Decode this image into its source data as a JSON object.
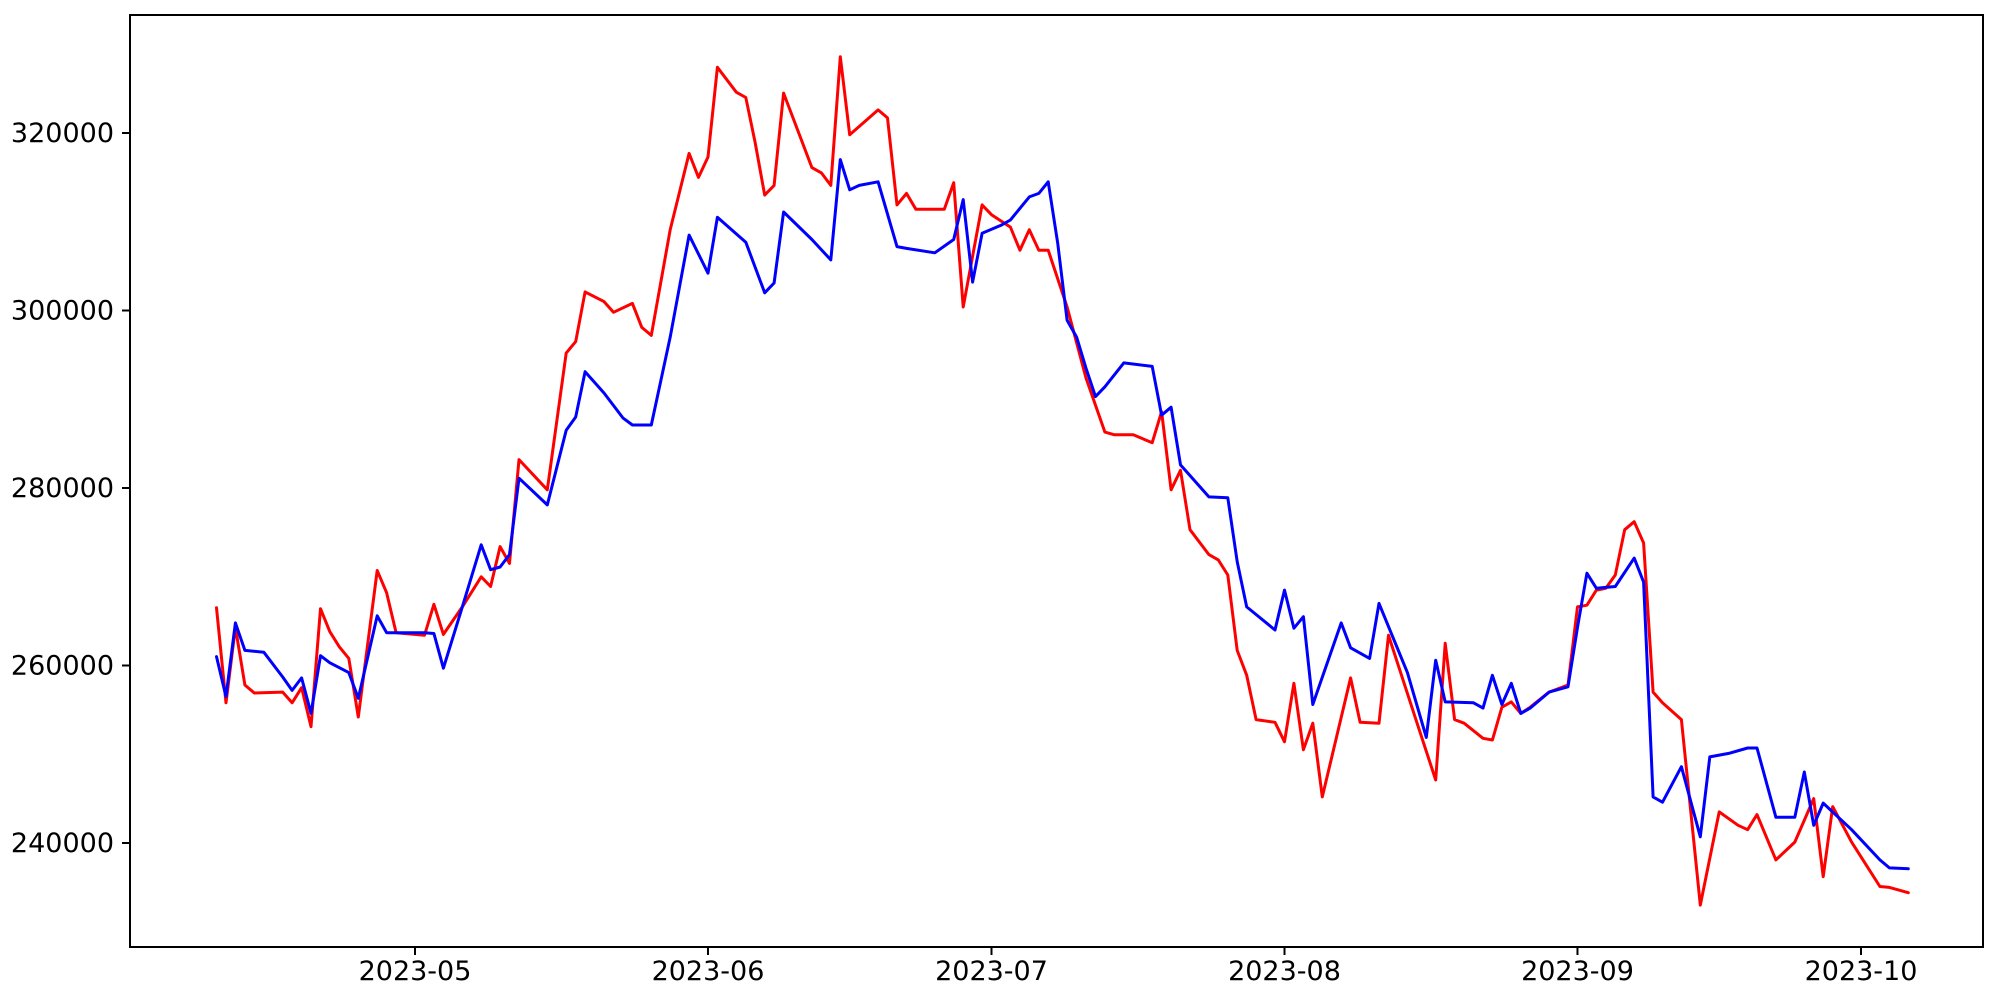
{
  "chart_data": {
    "type": "line",
    "title": "",
    "xlabel": "",
    "ylabel": "",
    "grid": false,
    "legend": "none",
    "background_color": "#ffffff",
    "axis_color": "#000000",
    "xlim_dates": [
      "2023-04-01",
      "2023-10-14"
    ],
    "ylim": [
      228300,
      333300
    ],
    "x_ticks": [
      {
        "label": "2023-05",
        "date": "2023-05-01"
      },
      {
        "label": "2023-06",
        "date": "2023-06-01"
      },
      {
        "label": "2023-07",
        "date": "2023-07-01"
      },
      {
        "label": "2023-08",
        "date": "2023-08-01"
      },
      {
        "label": "2023-09",
        "date": "2023-09-01"
      },
      {
        "label": "2023-10",
        "date": "2023-10-01"
      }
    ],
    "y_ticks": [
      {
        "label": "240000",
        "value": 240000
      },
      {
        "label": "260000",
        "value": 260000
      },
      {
        "label": "280000",
        "value": 280000
      },
      {
        "label": "300000",
        "value": 300000
      },
      {
        "label": "320000",
        "value": 320000
      }
    ],
    "series": [
      {
        "name": "red-series",
        "color": "#ff0000",
        "points": [
          [
            "2023-04-10",
            266500
          ],
          [
            "2023-04-11",
            255800
          ],
          [
            "2023-04-12",
            264300
          ],
          [
            "2023-04-13",
            257800
          ],
          [
            "2023-04-14",
            256900
          ],
          [
            "2023-04-17",
            257000
          ],
          [
            "2023-04-18",
            255800
          ],
          [
            "2023-04-19",
            257500
          ],
          [
            "2023-04-20",
            253100
          ],
          [
            "2023-04-21",
            266400
          ],
          [
            "2023-04-22",
            263800
          ],
          [
            "2023-04-23",
            262100
          ],
          [
            "2023-04-24",
            260800
          ],
          [
            "2023-04-25",
            254200
          ],
          [
            "2023-04-27",
            270700
          ],
          [
            "2023-04-28",
            268200
          ],
          [
            "2023-04-29",
            263700
          ],
          [
            "2023-05-02",
            263400
          ],
          [
            "2023-05-03",
            266900
          ],
          [
            "2023-05-04",
            263500
          ],
          [
            "2023-05-06",
            266600
          ],
          [
            "2023-05-08",
            270000
          ],
          [
            "2023-05-09",
            268900
          ],
          [
            "2023-05-10",
            273400
          ],
          [
            "2023-05-11",
            271500
          ],
          [
            "2023-05-12",
            283200
          ],
          [
            "2023-05-15",
            279800
          ],
          [
            "2023-05-17",
            295200
          ],
          [
            "2023-05-18",
            296500
          ],
          [
            "2023-05-19",
            302100
          ],
          [
            "2023-05-21",
            301000
          ],
          [
            "2023-05-22",
            299800
          ],
          [
            "2023-05-24",
            300800
          ],
          [
            "2023-05-25",
            298100
          ],
          [
            "2023-05-26",
            297200
          ],
          [
            "2023-05-28",
            309100
          ],
          [
            "2023-05-30",
            317700
          ],
          [
            "2023-05-31",
            315000
          ],
          [
            "2023-06-01",
            317300
          ],
          [
            "2023-06-02",
            327400
          ],
          [
            "2023-06-04",
            324600
          ],
          [
            "2023-06-05",
            324000
          ],
          [
            "2023-06-06",
            318900
          ],
          [
            "2023-06-07",
            313000
          ],
          [
            "2023-06-08",
            314100
          ],
          [
            "2023-06-09",
            324500
          ],
          [
            "2023-06-12",
            316100
          ],
          [
            "2023-06-13",
            315500
          ],
          [
            "2023-06-14",
            314100
          ],
          [
            "2023-06-15",
            328600
          ],
          [
            "2023-06-16",
            319800
          ],
          [
            "2023-06-19",
            322600
          ],
          [
            "2023-06-20",
            321700
          ],
          [
            "2023-06-21",
            311900
          ],
          [
            "2023-06-22",
            313200
          ],
          [
            "2023-06-23",
            311400
          ],
          [
            "2023-06-26",
            311400
          ],
          [
            "2023-06-27",
            314400
          ],
          [
            "2023-06-28",
            300400
          ],
          [
            "2023-06-30",
            311900
          ],
          [
            "2023-07-01",
            310800
          ],
          [
            "2023-07-03",
            309400
          ],
          [
            "2023-07-04",
            306800
          ],
          [
            "2023-07-05",
            309100
          ],
          [
            "2023-07-06",
            306800
          ],
          [
            "2023-07-07",
            306800
          ],
          [
            "2023-07-09",
            300400
          ],
          [
            "2023-07-11",
            292400
          ],
          [
            "2023-07-13",
            286300
          ],
          [
            "2023-07-14",
            286000
          ],
          [
            "2023-07-16",
            286000
          ],
          [
            "2023-07-18",
            285100
          ],
          [
            "2023-07-19",
            288600
          ],
          [
            "2023-07-20",
            279800
          ],
          [
            "2023-07-21",
            282000
          ],
          [
            "2023-07-22",
            275300
          ],
          [
            "2023-07-24",
            272500
          ],
          [
            "2023-07-25",
            271900
          ],
          [
            "2023-07-26",
            270200
          ],
          [
            "2023-07-27",
            261700
          ],
          [
            "2023-07-28",
            258900
          ],
          [
            "2023-07-29",
            253900
          ],
          [
            "2023-07-31",
            253600
          ],
          [
            "2023-08-01",
            251400
          ],
          [
            "2023-08-02",
            258000
          ],
          [
            "2023-08-03",
            250500
          ],
          [
            "2023-08-04",
            253500
          ],
          [
            "2023-08-05",
            245200
          ],
          [
            "2023-08-08",
            258600
          ],
          [
            "2023-08-09",
            253600
          ],
          [
            "2023-08-11",
            253500
          ],
          [
            "2023-08-12",
            263400
          ],
          [
            "2023-08-15",
            253600
          ],
          [
            "2023-08-17",
            247100
          ],
          [
            "2023-08-18",
            262500
          ],
          [
            "2023-08-19",
            253900
          ],
          [
            "2023-08-20",
            253500
          ],
          [
            "2023-08-22",
            251800
          ],
          [
            "2023-08-23",
            251600
          ],
          [
            "2023-08-24",
            255300
          ],
          [
            "2023-08-25",
            255900
          ],
          [
            "2023-08-26",
            254600
          ],
          [
            "2023-08-27",
            255300
          ],
          [
            "2023-08-29",
            257000
          ],
          [
            "2023-08-31",
            257800
          ],
          [
            "2023-09-01",
            266600
          ],
          [
            "2023-09-02",
            266800
          ],
          [
            "2023-09-03",
            268500
          ],
          [
            "2023-09-04",
            268700
          ],
          [
            "2023-09-05",
            270200
          ],
          [
            "2023-09-06",
            275300
          ],
          [
            "2023-09-07",
            276200
          ],
          [
            "2023-09-08",
            273800
          ],
          [
            "2023-09-09",
            257000
          ],
          [
            "2023-09-10",
            255800
          ],
          [
            "2023-09-12",
            253900
          ],
          [
            "2023-09-14",
            233000
          ],
          [
            "2023-09-16",
            243500
          ],
          [
            "2023-09-18",
            242000
          ],
          [
            "2023-09-19",
            241500
          ],
          [
            "2023-09-20",
            243200
          ],
          [
            "2023-09-22",
            238100
          ],
          [
            "2023-09-24",
            240100
          ],
          [
            "2023-09-26",
            245000
          ],
          [
            "2023-09-27",
            236200
          ],
          [
            "2023-09-28",
            244100
          ],
          [
            "2023-09-30",
            240100
          ],
          [
            "2023-10-03",
            235100
          ],
          [
            "2023-10-04",
            235000
          ],
          [
            "2023-10-06",
            234400
          ]
        ]
      },
      {
        "name": "blue-series",
        "color": "#0000ff",
        "points": [
          [
            "2023-04-10",
            261000
          ],
          [
            "2023-04-11",
            256500
          ],
          [
            "2023-04-12",
            264800
          ],
          [
            "2023-04-13",
            261700
          ],
          [
            "2023-04-15",
            261500
          ],
          [
            "2023-04-17",
            258700
          ],
          [
            "2023-04-18",
            257200
          ],
          [
            "2023-04-19",
            258600
          ],
          [
            "2023-04-20",
            254600
          ],
          [
            "2023-04-21",
            261100
          ],
          [
            "2023-04-22",
            260300
          ],
          [
            "2023-04-24",
            259200
          ],
          [
            "2023-04-25",
            256300
          ],
          [
            "2023-04-27",
            265600
          ],
          [
            "2023-04-28",
            263700
          ],
          [
            "2023-05-02",
            263700
          ],
          [
            "2023-05-03",
            263600
          ],
          [
            "2023-05-04",
            259700
          ],
          [
            "2023-05-06",
            266600
          ],
          [
            "2023-05-08",
            273600
          ],
          [
            "2023-05-09",
            270800
          ],
          [
            "2023-05-10",
            271100
          ],
          [
            "2023-05-11",
            272500
          ],
          [
            "2023-05-12",
            281100
          ],
          [
            "2023-05-15",
            278100
          ],
          [
            "2023-05-17",
            286500
          ],
          [
            "2023-05-18",
            288000
          ],
          [
            "2023-05-19",
            293100
          ],
          [
            "2023-05-21",
            290700
          ],
          [
            "2023-05-23",
            287900
          ],
          [
            "2023-05-24",
            287100
          ],
          [
            "2023-05-26",
            287100
          ],
          [
            "2023-05-28",
            297000
          ],
          [
            "2023-05-30",
            308500
          ],
          [
            "2023-06-01",
            304200
          ],
          [
            "2023-06-02",
            310500
          ],
          [
            "2023-06-05",
            307700
          ],
          [
            "2023-06-07",
            302000
          ],
          [
            "2023-06-08",
            303100
          ],
          [
            "2023-06-09",
            311100
          ],
          [
            "2023-06-12",
            308000
          ],
          [
            "2023-06-14",
            305700
          ],
          [
            "2023-06-15",
            317000
          ],
          [
            "2023-06-16",
            313600
          ],
          [
            "2023-06-17",
            314100
          ],
          [
            "2023-06-19",
            314500
          ],
          [
            "2023-06-21",
            307200
          ],
          [
            "2023-06-22",
            307000
          ],
          [
            "2023-06-25",
            306500
          ],
          [
            "2023-06-27",
            308000
          ],
          [
            "2023-06-28",
            312500
          ],
          [
            "2023-06-29",
            303200
          ],
          [
            "2023-06-30",
            308700
          ],
          [
            "2023-07-02",
            309600
          ],
          [
            "2023-07-03",
            310200
          ],
          [
            "2023-07-05",
            312800
          ],
          [
            "2023-07-06",
            313200
          ],
          [
            "2023-07-07",
            314500
          ],
          [
            "2023-07-08",
            307600
          ],
          [
            "2023-07-09",
            298900
          ],
          [
            "2023-07-10",
            297000
          ],
          [
            "2023-07-11",
            293500
          ],
          [
            "2023-07-12",
            290300
          ],
          [
            "2023-07-13",
            291400
          ],
          [
            "2023-07-15",
            294100
          ],
          [
            "2023-07-18",
            293700
          ],
          [
            "2023-07-19",
            288200
          ],
          [
            "2023-07-20",
            289100
          ],
          [
            "2023-07-21",
            282600
          ],
          [
            "2023-07-24",
            279000
          ],
          [
            "2023-07-26",
            278900
          ],
          [
            "2023-07-27",
            271700
          ],
          [
            "2023-07-28",
            266600
          ],
          [
            "2023-07-31",
            264000
          ],
          [
            "2023-08-01",
            268500
          ],
          [
            "2023-08-02",
            264200
          ],
          [
            "2023-08-03",
            265500
          ],
          [
            "2023-08-04",
            255600
          ],
          [
            "2023-08-07",
            264800
          ],
          [
            "2023-08-08",
            262000
          ],
          [
            "2023-08-10",
            260800
          ],
          [
            "2023-08-11",
            267000
          ],
          [
            "2023-08-14",
            259200
          ],
          [
            "2023-08-16",
            251900
          ],
          [
            "2023-08-17",
            260600
          ],
          [
            "2023-08-18",
            255900
          ],
          [
            "2023-08-21",
            255800
          ],
          [
            "2023-08-22",
            255200
          ],
          [
            "2023-08-23",
            258900
          ],
          [
            "2023-08-24",
            255600
          ],
          [
            "2023-08-25",
            258000
          ],
          [
            "2023-08-26",
            254600
          ],
          [
            "2023-08-27",
            255200
          ],
          [
            "2023-08-29",
            257000
          ],
          [
            "2023-08-31",
            257600
          ],
          [
            "2023-09-01",
            264300
          ],
          [
            "2023-09-02",
            270400
          ],
          [
            "2023-09-03",
            268700
          ],
          [
            "2023-09-05",
            268900
          ],
          [
            "2023-09-07",
            272100
          ],
          [
            "2023-09-08",
            269400
          ],
          [
            "2023-09-09",
            245200
          ],
          [
            "2023-09-10",
            244600
          ],
          [
            "2023-09-12",
            248600
          ],
          [
            "2023-09-14",
            240700
          ],
          [
            "2023-09-15",
            249700
          ],
          [
            "2023-09-17",
            250100
          ],
          [
            "2023-09-19",
            250700
          ],
          [
            "2023-09-20",
            250700
          ],
          [
            "2023-09-22",
            242900
          ],
          [
            "2023-09-24",
            242900
          ],
          [
            "2023-09-25",
            248000
          ],
          [
            "2023-09-26",
            242000
          ],
          [
            "2023-09-27",
            244500
          ],
          [
            "2023-09-30",
            241500
          ],
          [
            "2023-10-03",
            238100
          ],
          [
            "2023-10-04",
            237200
          ],
          [
            "2023-10-06",
            237100
          ]
        ]
      }
    ]
  }
}
